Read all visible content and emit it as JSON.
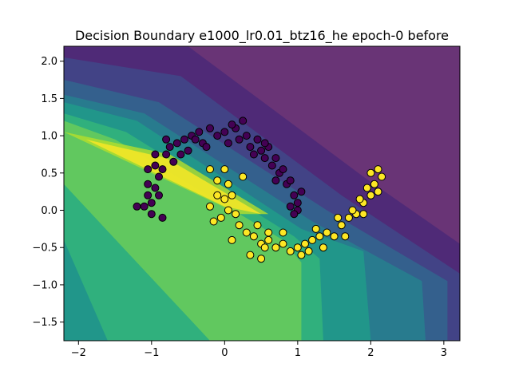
{
  "chart_data": {
    "type": "scatter",
    "title": "Decision Boundary e1000_lr0.01_btz16_he epoch-0 before",
    "xlabel": "",
    "ylabel": "",
    "xlim": [
      -2.2,
      3.22
    ],
    "ylim": [
      -1.75,
      2.2
    ],
    "xticks": [
      -2,
      -1,
      0,
      1,
      2,
      3
    ],
    "yticks": [
      -1.5,
      -1.0,
      -0.5,
      0.0,
      0.5,
      1.0,
      1.5,
      2.0
    ],
    "grid": false,
    "legend": "none",
    "background": "filled decision-boundary contour (viridis), maximum along the band from (-2.2, 0.95) to (0.5, -0.05), decreasing toward the upper right",
    "colors": {
      "class_0": "#440154",
      "class_1": "#fde725",
      "marker_edge": "#000000",
      "contour_levels": [
        "#440154",
        "#482878",
        "#3e4a89",
        "#31688e",
        "#26828e",
        "#1f9e89",
        "#35b779",
        "#6ece58",
        "#b5de2b",
        "#fde725"
      ]
    },
    "series": [
      {
        "class": 0,
        "color": "#440154",
        "description": "upper moon",
        "points": [
          [
            -1.1,
            0.05
          ],
          [
            -1.05,
            0.2
          ],
          [
            -1.0,
            0.1
          ],
          [
            -0.95,
            0.3
          ],
          [
            -1.05,
            0.35
          ],
          [
            -0.9,
            0.45
          ],
          [
            -0.95,
            0.6
          ],
          [
            -0.85,
            0.55
          ],
          [
            -0.8,
            0.75
          ],
          [
            -0.9,
            0.2
          ],
          [
            -1.0,
            -0.05
          ],
          [
            -0.85,
            -0.1
          ],
          [
            -0.75,
            0.85
          ],
          [
            -0.7,
            0.65
          ],
          [
            -0.65,
            0.9
          ],
          [
            -0.55,
            0.95
          ],
          [
            -0.5,
            0.8
          ],
          [
            -0.45,
            1.0
          ],
          [
            -0.35,
            1.05
          ],
          [
            -0.3,
            0.9
          ],
          [
            -0.2,
            1.1
          ],
          [
            -0.1,
            1.0
          ],
          [
            0.0,
            1.05
          ],
          [
            0.05,
            0.9
          ],
          [
            0.15,
            1.1
          ],
          [
            0.2,
            0.95
          ],
          [
            0.3,
            1.0
          ],
          [
            0.35,
            0.85
          ],
          [
            0.45,
            0.95
          ],
          [
            0.5,
            0.8
          ],
          [
            0.55,
            0.7
          ],
          [
            0.6,
            0.85
          ],
          [
            0.65,
            0.6
          ],
          [
            0.7,
            0.7
          ],
          [
            0.75,
            0.5
          ],
          [
            0.8,
            0.55
          ],
          [
            0.85,
            0.35
          ],
          [
            0.9,
            0.4
          ],
          [
            0.95,
            0.2
          ],
          [
            1.0,
            0.1
          ],
          [
            1.05,
            0.25
          ],
          [
            1.0,
            0.0
          ],
          [
            0.9,
            0.05
          ],
          [
            -1.2,
            0.05
          ],
          [
            -0.6,
            0.75
          ],
          [
            0.4,
            0.75
          ],
          [
            -0.25,
            0.85
          ],
          [
            0.1,
            1.15
          ],
          [
            0.95,
            -0.05
          ],
          [
            0.7,
            0.4
          ],
          [
            -0.95,
            0.75
          ],
          [
            -1.05,
            0.55
          ],
          [
            -0.8,
            0.95
          ],
          [
            0.25,
            1.2
          ],
          [
            -0.4,
            0.95
          ],
          [
            0.55,
            0.9
          ]
        ]
      },
      {
        "class": 1,
        "color": "#fde725",
        "description": "lower moon",
        "points": [
          [
            -0.2,
            0.55
          ],
          [
            -0.1,
            0.4
          ],
          [
            0.0,
            0.55
          ],
          [
            0.05,
            0.35
          ],
          [
            0.1,
            0.2
          ],
          [
            0.0,
            0.15
          ],
          [
            -0.1,
            0.2
          ],
          [
            -0.05,
            -0.1
          ],
          [
            0.05,
            0.0
          ],
          [
            0.15,
            -0.05
          ],
          [
            0.2,
            -0.2
          ],
          [
            0.3,
            -0.3
          ],
          [
            0.4,
            -0.35
          ],
          [
            0.5,
            -0.45
          ],
          [
            0.55,
            -0.5
          ],
          [
            0.6,
            -0.4
          ],
          [
            0.7,
            -0.5
          ],
          [
            0.8,
            -0.45
          ],
          [
            0.9,
            -0.55
          ],
          [
            1.0,
            -0.5
          ],
          [
            1.1,
            -0.45
          ],
          [
            1.2,
            -0.4
          ],
          [
            1.3,
            -0.35
          ],
          [
            1.4,
            -0.3
          ],
          [
            1.5,
            -0.35
          ],
          [
            1.6,
            -0.2
          ],
          [
            1.7,
            -0.1
          ],
          [
            1.8,
            -0.05
          ],
          [
            1.9,
            0.1
          ],
          [
            2.0,
            0.2
          ],
          [
            2.05,
            0.35
          ],
          [
            2.0,
            0.5
          ],
          [
            2.1,
            0.55
          ],
          [
            2.15,
            0.45
          ],
          [
            1.95,
            0.3
          ],
          [
            1.85,
            0.15
          ],
          [
            1.75,
            0.0
          ],
          [
            0.1,
            -0.4
          ],
          [
            0.35,
            -0.6
          ],
          [
            0.5,
            -0.65
          ],
          [
            1.05,
            -0.6
          ],
          [
            1.15,
            -0.55
          ],
          [
            -0.15,
            -0.15
          ],
          [
            -0.2,
            0.05
          ],
          [
            0.25,
            0.45
          ],
          [
            0.6,
            -0.3
          ],
          [
            1.35,
            -0.5
          ],
          [
            1.65,
            -0.35
          ],
          [
            2.1,
            0.25
          ],
          [
            1.9,
            -0.05
          ],
          [
            0.45,
            -0.2
          ],
          [
            0.8,
            -0.3
          ],
          [
            1.25,
            -0.25
          ],
          [
            1.55,
            -0.1
          ]
        ]
      }
    ]
  }
}
